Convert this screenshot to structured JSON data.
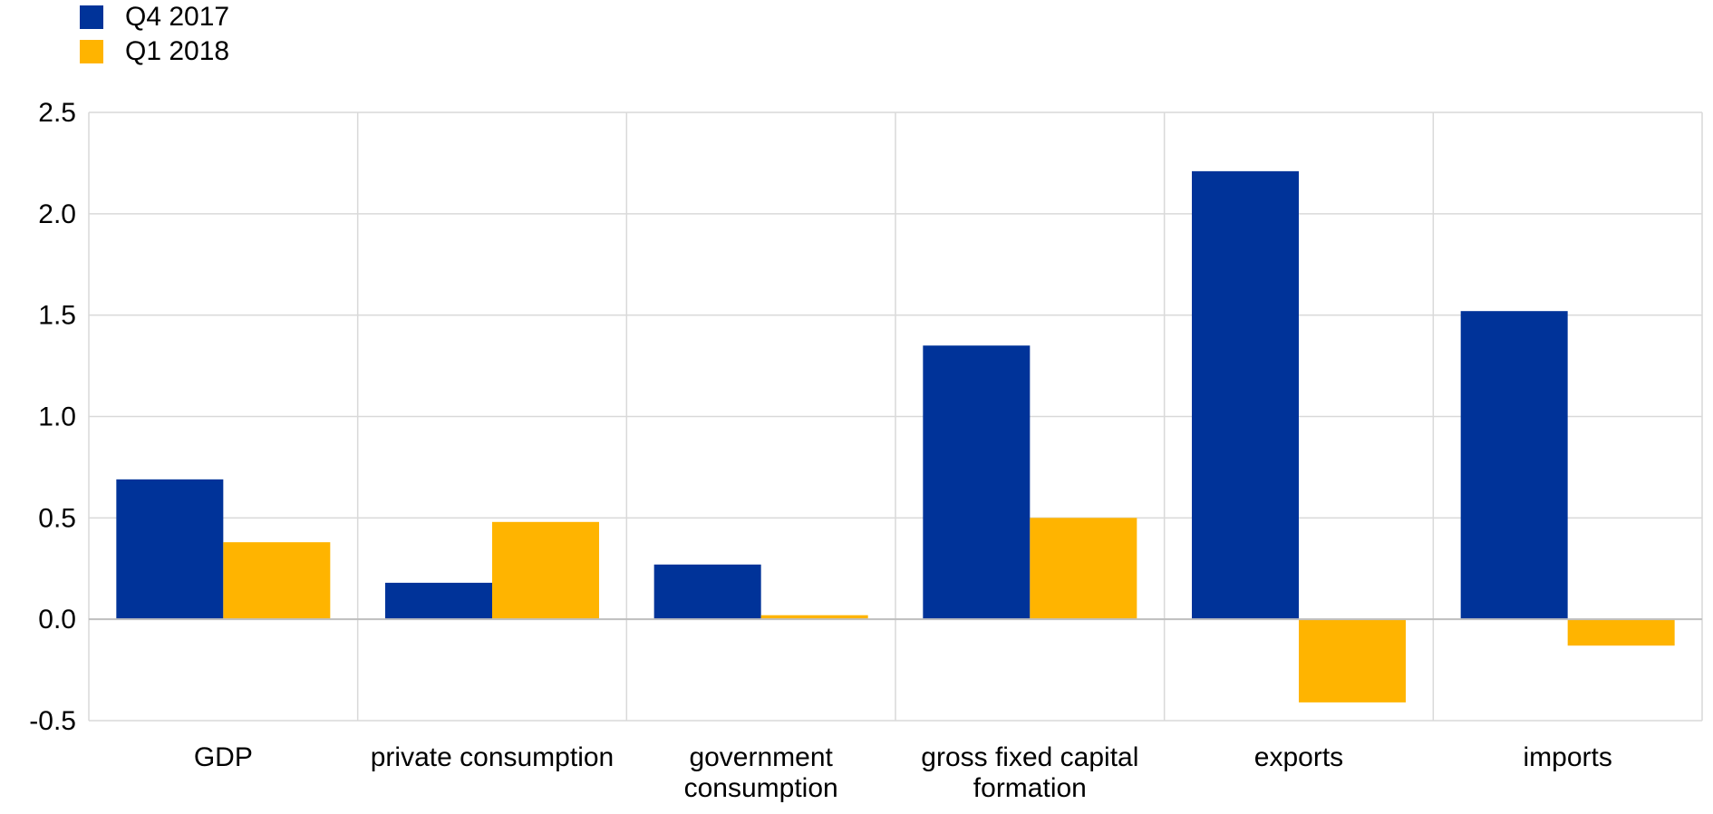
{
  "chart_data": {
    "type": "bar",
    "categories": [
      [
        "GDP"
      ],
      [
        "private consumption"
      ],
      [
        "government",
        "consumption"
      ],
      [
        "gross fixed capital",
        "formation"
      ],
      [
        "exports"
      ],
      [
        "imports"
      ]
    ],
    "series": [
      {
        "name": "Q4 2017",
        "color": "#003399",
        "values": [
          0.69,
          0.18,
          0.27,
          1.35,
          2.21,
          1.52
        ]
      },
      {
        "name": "Q1 2018",
        "color": "#FFB400",
        "values": [
          0.38,
          0.48,
          0.02,
          0.5,
          -0.41,
          -0.13
        ]
      }
    ],
    "ylim": [
      -0.5,
      2.5
    ],
    "yticks": [
      "-0.5",
      "0.0",
      "0.5",
      "1.0",
      "1.5",
      "2.0",
      "2.5"
    ],
    "grid": true,
    "legend": "top-left"
  }
}
